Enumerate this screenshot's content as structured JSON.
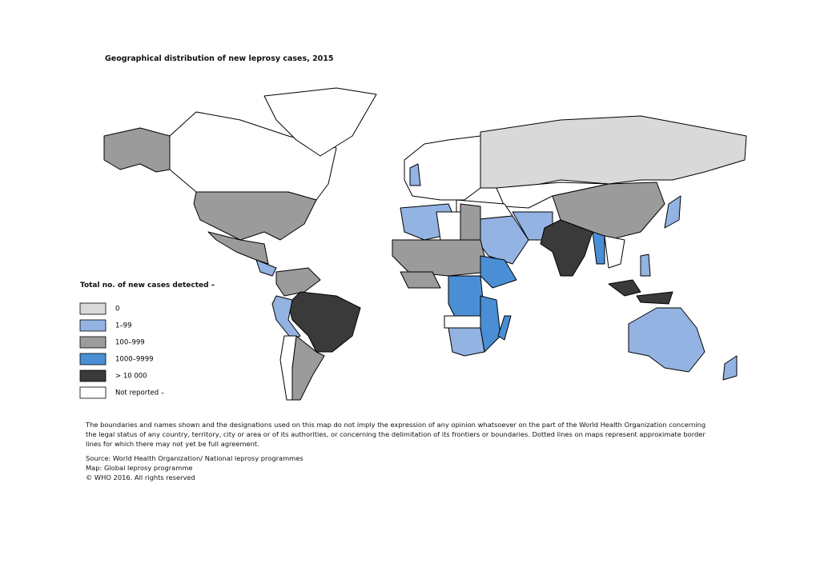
{
  "title": "Geographical distribution of new leprosy cases, 2015",
  "legend": {
    "title": "Total no. of new cases detected –",
    "items": [
      {
        "label": "0",
        "color": "#d9d9d9"
      },
      {
        "label": "1–99",
        "color": "#93b3e2"
      },
      {
        "label": "100–999",
        "color": "#9b9b9b"
      },
      {
        "label": "1000–9999",
        "color": "#4a8fd6"
      },
      {
        "label": "> 10 000",
        "color": "#3a3a3a"
      },
      {
        "label": "Not reported –",
        "color": "#ffffff"
      }
    ]
  },
  "notes": {
    "disclaimer": "The boundaries and names shown and the designations used on this map do not imply the expression of any opinion whatsoever on the part of the World Health Organization concerning the legal status of any country, territory, city or area or of its authorities, or concerning the delimitation of its frontiers or boundaries. Dotted lines on maps represent approximate border lines for which there may not yet be full agreement.",
    "source": "Source: World Health Organization/ National leprosy programmes",
    "map": "Map: Global leprosy programme",
    "copyright": "© WHO 2016. All rights reserved"
  }
}
